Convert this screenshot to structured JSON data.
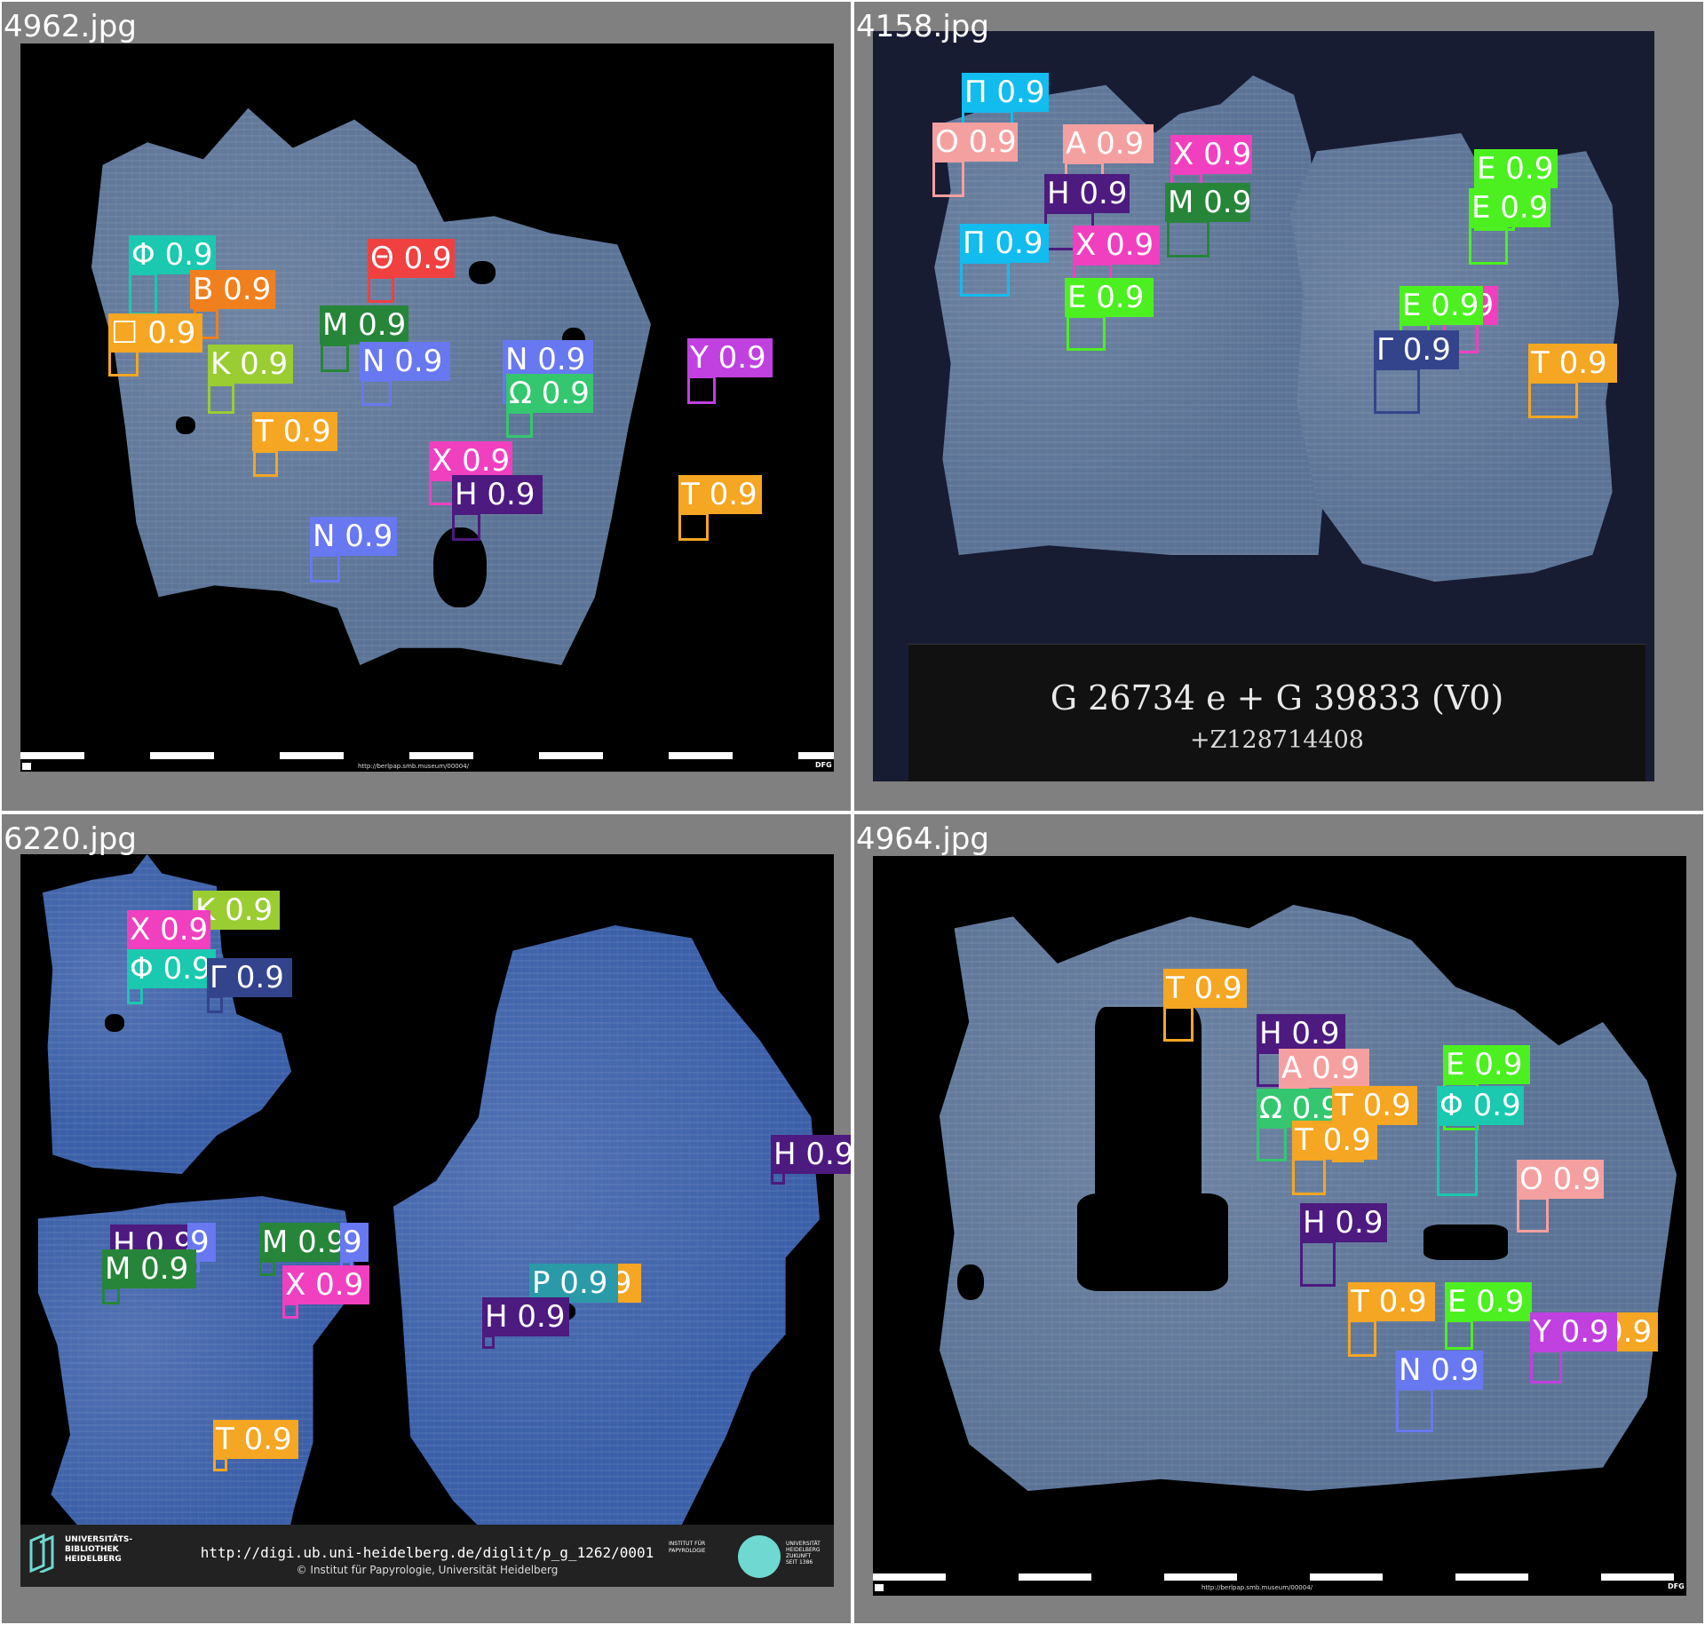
{
  "panels": [
    {
      "id": "p0",
      "filename": "4962.jpg",
      "footer": {
        "url": "http://berlpap.smb.museum/00004/",
        "right": "DFG"
      },
      "detections": [
        {
          "label": "Φ 0.9",
          "color": "#1bc8b0"
        },
        {
          "label": "Θ 0.9",
          "color": "#f04040"
        },
        {
          "label": "B 0.9",
          "color": "#f0801e"
        },
        {
          "label": "☐ 0.9",
          "color": "#f5a623"
        },
        {
          "label": "M 0.9",
          "color": "#27853a"
        },
        {
          "label": "K 0.9",
          "color": "#9acd32"
        },
        {
          "label": "N 0.9",
          "color": "#6878f0"
        },
        {
          "label": "N 0.9",
          "color": "#6878f0"
        },
        {
          "label": "Y 0.9",
          "color": "#c040e0"
        },
        {
          "label": "Ω 0.9",
          "color": "#35c670"
        },
        {
          "label": "T 0.9",
          "color": "#f5a623"
        },
        {
          "label": "X 0.9",
          "color": "#f040c0"
        },
        {
          "label": "H 0.9",
          "color": "#4d1a7f"
        },
        {
          "label": "T 0.9",
          "color": "#f5a623"
        },
        {
          "label": "N 0.9",
          "color": "#6878f0"
        }
      ]
    },
    {
      "id": "p1",
      "filename": "4158.jpg",
      "card": {
        "line1": "G 26734 e + G 39833 (V0)",
        "line2": "+Z128714408"
      },
      "detections": [
        {
          "label": "Π 0.9",
          "color": "#12bcee"
        },
        {
          "label": "O 0.9",
          "color": "#f5a0a0"
        },
        {
          "label": "A 0.9",
          "color": "#f5a0a0"
        },
        {
          "label": "X 0.9",
          "color": "#f040c0"
        },
        {
          "label": "E 0.9",
          "color": "#4cf020"
        },
        {
          "label": "H 0.9",
          "color": "#4d1a7f"
        },
        {
          "label": "M 0.9",
          "color": "#27853a"
        },
        {
          "label": "E 0.9",
          "color": "#4cf020"
        },
        {
          "label": "Π 0.9",
          "color": "#12bcee"
        },
        {
          "label": "X 0.9",
          "color": "#f040c0"
        },
        {
          "label": "E 0.9",
          "color": "#4cf020"
        },
        {
          "label": "0.9",
          "color": "#f040c0"
        },
        {
          "label": "E 0.9",
          "color": "#4cf020"
        },
        {
          "label": "Γ 0.9",
          "color": "#34448c"
        },
        {
          "label": "T 0.9",
          "color": "#f5a623"
        }
      ]
    },
    {
      "id": "p2",
      "filename": "6220.jpg",
      "footer": {
        "logo_name": "UNIVERSITÄTS-\nBIBLIOTHEK\nHEIDELBERG",
        "url": "http://digi.ub.uni-heidelberg.de/diglit/p_g_1262/0001",
        "copyright": "© Institut für Papyrologie, Universität Heidelberg",
        "institute": "INSTITUT FÜR\nPAPYROLOGIE",
        "university": "UNIVERSITÄT\nHEIDELBERG\nZUKUNFT\nSEIT 1386",
        "accent": "#6fd8d0"
      },
      "detections": [
        {
          "label": "K 0.9",
          "color": "#9acd32"
        },
        {
          "label": "X 0.9",
          "color": "#f040c0"
        },
        {
          "label": "Φ 0.9",
          "color": "#1bc8b0"
        },
        {
          "label": "Γ 0.9",
          "color": "#34448c"
        },
        {
          "label": "H 0.9",
          "color": "#4d1a7f"
        },
        {
          "label": "H 0.9",
          "color": "#4d1a7f"
        },
        {
          "label": "9",
          "color": "#6878f0"
        },
        {
          "label": "M 0.9",
          "color": "#27853a"
        },
        {
          "label": "9",
          "color": "#6878f0"
        },
        {
          "label": "M 0.9",
          "color": "#27853a"
        },
        {
          "label": "X 0.9",
          "color": "#f040c0"
        },
        {
          "label": ".9",
          "color": "#f5a623"
        },
        {
          "label": "P 0.9",
          "color": "#2a9aa8"
        },
        {
          "label": "H 0.9",
          "color": "#4d1a7f"
        },
        {
          "label": "T 0.9",
          "color": "#f5a623"
        }
      ]
    },
    {
      "id": "p3",
      "filename": "4964.jpg",
      "footer": {
        "url": "http://berlpap.smb.museum/00004/",
        "right": "DFG"
      },
      "detections": [
        {
          "label": "T 0.9",
          "color": "#f5a623"
        },
        {
          "label": "H 0.9",
          "color": "#4d1a7f"
        },
        {
          "label": "A 0.9",
          "color": "#f5a0a0"
        },
        {
          "label": "E 0.9",
          "color": "#4cf020"
        },
        {
          "label": "Ω 0.9",
          "color": "#35c670"
        },
        {
          "label": "T 0.9",
          "color": "#f5a623"
        },
        {
          "label": "Φ 0.9",
          "color": "#1bc8b0"
        },
        {
          "label": "T 0.9",
          "color": "#f5a623"
        },
        {
          "label": "O 0.9",
          "color": "#f5a0a0"
        },
        {
          "label": "H 0.9",
          "color": "#4d1a7f"
        },
        {
          "label": "T 0.9",
          "color": "#f5a623"
        },
        {
          "label": "E 0.9",
          "color": "#4cf020"
        },
        {
          "label": "0.9",
          "color": "#f5a623"
        },
        {
          "label": "Y 0.9",
          "color": "#c040e0"
        },
        {
          "label": "N 0.9",
          "color": "#6878f0"
        }
      ]
    }
  ]
}
